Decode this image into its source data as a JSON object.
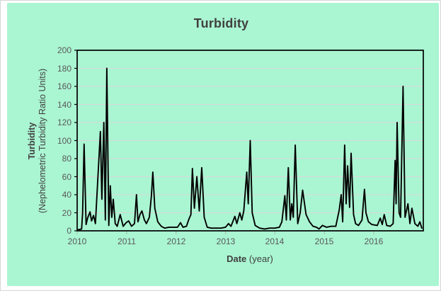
{
  "title": "Turbidity",
  "colors": {
    "panel_background": "#aaf5d2",
    "page_background": "#ffffff",
    "frame_border": "#d6d6d6",
    "title_text": "#404040",
    "tick_text": "#595959"
  },
  "chart_data": {
    "type": "line",
    "title": "Turbidity",
    "grid": true,
    "legend": "none",
    "grid_color": "#d9d9d9",
    "line_color": "#000000",
    "axis_color": "#000000",
    "x_axis": {
      "label_bold": "Date",
      "label_rest": "(year)",
      "range": [
        2010,
        2017
      ],
      "ticks": [
        2010,
        2011,
        2012,
        2013,
        2014,
        2015,
        2016
      ]
    },
    "y_axis": {
      "label_line1": "Turbidity",
      "label_line2": "(Nephelometric Turbidity Ratio Units)",
      "range": [
        0,
        200
      ],
      "ticks": [
        0,
        20,
        40,
        60,
        80,
        100,
        120,
        140,
        160,
        180,
        200
      ]
    },
    "series": [
      {
        "name": "Turbidity",
        "x": [
          2010.01,
          2010.09,
          2010.11,
          2010.14,
          2010.18,
          2010.21,
          2010.26,
          2010.29,
          2010.33,
          2010.37,
          2010.47,
          2010.5,
          2010.54,
          2010.57,
          2010.6,
          2010.64,
          2010.67,
          2010.7,
          2010.73,
          2010.77,
          2010.81,
          2010.87,
          2010.93,
          2010.99,
          2011.04,
          2011.1,
          2011.16,
          2011.2,
          2011.23,
          2011.27,
          2011.31,
          2011.36,
          2011.4,
          2011.46,
          2011.5,
          2011.53,
          2011.57,
          2011.63,
          2011.7,
          2011.77,
          2011.86,
          2011.94,
          2012.03,
          2012.09,
          2012.14,
          2012.21,
          2012.26,
          2012.3,
          2012.33,
          2012.37,
          2012.42,
          2012.47,
          2012.52,
          2012.57,
          2012.63,
          2012.71,
          2012.81,
          2012.91,
          2013.0,
          2013.06,
          2013.11,
          2013.19,
          2013.23,
          2013.29,
          2013.33,
          2013.37,
          2013.43,
          2013.46,
          2013.5,
          2013.54,
          2013.6,
          2013.69,
          2013.79,
          2013.89,
          2014.0,
          2014.09,
          2014.14,
          2014.2,
          2014.23,
          2014.27,
          2014.31,
          2014.34,
          2014.37,
          2014.41,
          2014.46,
          2014.51,
          2014.56,
          2014.63,
          2014.7,
          2014.77,
          2014.84,
          2014.89,
          2014.96,
          2015.04,
          2015.14,
          2015.23,
          2015.3,
          2015.34,
          2015.37,
          2015.41,
          2015.44,
          2015.47,
          2015.51,
          2015.54,
          2015.59,
          2015.63,
          2015.69,
          2015.76,
          2015.81,
          2015.84,
          2015.89,
          2015.96,
          2016.07,
          2016.13,
          2016.17,
          2016.21,
          2016.26,
          2016.33,
          2016.39,
          2016.43,
          2016.45,
          2016.47,
          2016.51,
          2016.54,
          2016.59,
          2016.63,
          2016.69,
          2016.73,
          2016.77,
          2016.83,
          2016.89,
          2016.93,
          2016.97
        ],
        "values": [
          1,
          2,
          20,
          96,
          7,
          14,
          21,
          11,
          17,
          8,
          110,
          35,
          120,
          12,
          180,
          6,
          50,
          15,
          35,
          8,
          5,
          18,
          5,
          9,
          11,
          5,
          8,
          40,
          10,
          18,
          22,
          12,
          8,
          15,
          38,
          65,
          25,
          10,
          5,
          3,
          4,
          4,
          4,
          9,
          4,
          5,
          13,
          18,
          69,
          25,
          60,
          22,
          70,
          15,
          4,
          3,
          3,
          3,
          4,
          8,
          5,
          16,
          8,
          20,
          12,
          22,
          65,
          30,
          100,
          20,
          6,
          3,
          2,
          3,
          3,
          4,
          10,
          39,
          12,
          70,
          12,
          30,
          15,
          95,
          8,
          20,
          45,
          18,
          10,
          5,
          4,
          2,
          6,
          4,
          5,
          5,
          23,
          40,
          10,
          95,
          30,
          72,
          26,
          86,
          18,
          8,
          6,
          12,
          46,
          20,
          10,
          7,
          6,
          14,
          7,
          18,
          6,
          5,
          8,
          78,
          30,
          120,
          20,
          15,
          160,
          15,
          30,
          8,
          25,
          8,
          5,
          10,
          3
        ]
      }
    ]
  }
}
